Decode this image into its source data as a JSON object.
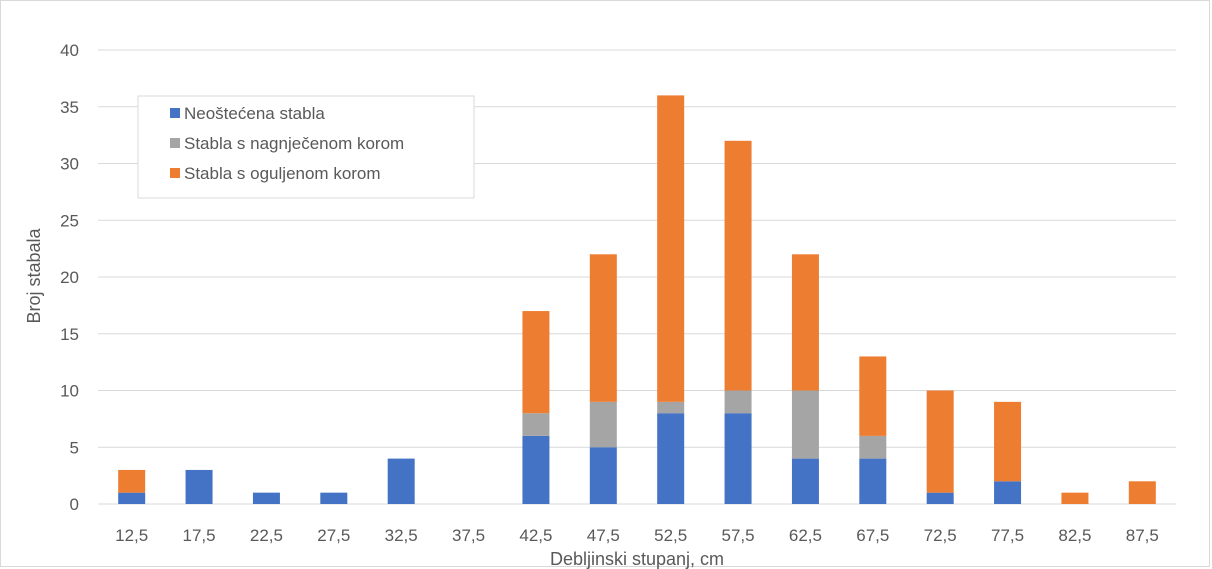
{
  "chart_data": {
    "type": "bar",
    "stacked": true,
    "xlabel": "Debljinski stupanj, cm",
    "ylabel": "Broj stabala",
    "ylim": [
      0,
      40
    ],
    "yticks": [
      0,
      5,
      10,
      15,
      20,
      25,
      30,
      35,
      40
    ],
    "grid": true,
    "legend_position": "top-left",
    "categories": [
      "12,5",
      "17,5",
      "22,5",
      "27,5",
      "32,5",
      "37,5",
      "42,5",
      "47,5",
      "52,5",
      "57,5",
      "62,5",
      "67,5",
      "72,5",
      "77,5",
      "82,5",
      "87,5"
    ],
    "series": [
      {
        "name": "Neoštećena stabla",
        "color": "#4472c4",
        "values": [
          1,
          3,
          1,
          1,
          4,
          0,
          6,
          5,
          8,
          8,
          4,
          4,
          1,
          2,
          0,
          0
        ]
      },
      {
        "name": "Stabla s nagnječenom korom",
        "color": "#a5a5a5",
        "values": [
          0,
          0,
          0,
          0,
          0,
          0,
          2,
          4,
          1,
          2,
          6,
          2,
          0,
          0,
          0,
          0
        ]
      },
      {
        "name": "Stabla s oguljenom korom",
        "color": "#ed7d31",
        "values": [
          2,
          0,
          0,
          0,
          0,
          0,
          9,
          13,
          27,
          22,
          12,
          7,
          9,
          7,
          1,
          2
        ]
      }
    ]
  }
}
